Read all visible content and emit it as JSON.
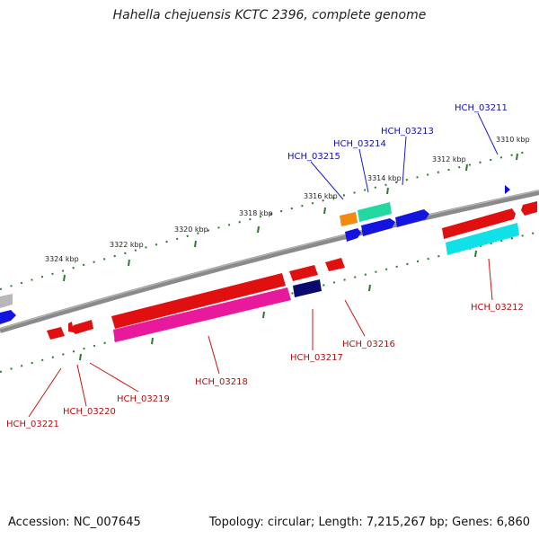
{
  "title": "Hahella chejuensis KCTC 2396, complete genome",
  "accession_text": "Accession: NC_007645",
  "summary_text": "Topology: circular; Length: 7,215,267 bp; Genes: 6,860",
  "colors": {
    "backbone": "#808080",
    "tick_ring": "#2a7a2a",
    "label_top": "#1010a8",
    "label_bottom": "#b01010",
    "leader_top": "#1a1ad0",
    "leader_bottom": "#d01010"
  },
  "ticks": [
    {
      "label": "3310 kbp"
    },
    {
      "label": "3312 kbp"
    },
    {
      "label": "3314 kbp"
    },
    {
      "label": "3316 kbp"
    },
    {
      "label": "3318 kbp"
    },
    {
      "label": "3320 kbp"
    },
    {
      "label": "3322 kbp"
    },
    {
      "label": "3324 kbp"
    }
  ],
  "gene_labels": [
    {
      "name": "HCH_03211",
      "color": "blue"
    },
    {
      "name": "HCH_03213",
      "color": "blue"
    },
    {
      "name": "HCH_03214",
      "color": "blue"
    },
    {
      "name": "HCH_03215",
      "color": "blue"
    },
    {
      "name": "HCH_03212",
      "color": "red"
    },
    {
      "name": "HCH_03216",
      "color": "red"
    },
    {
      "name": "HCH_03217",
      "color": "red"
    },
    {
      "name": "HCH_03218",
      "color": "red"
    },
    {
      "name": "HCH_03219",
      "color": "red"
    },
    {
      "name": "HCH_03220",
      "color": "red"
    },
    {
      "name": "HCH_03221",
      "color": "red"
    }
  ]
}
